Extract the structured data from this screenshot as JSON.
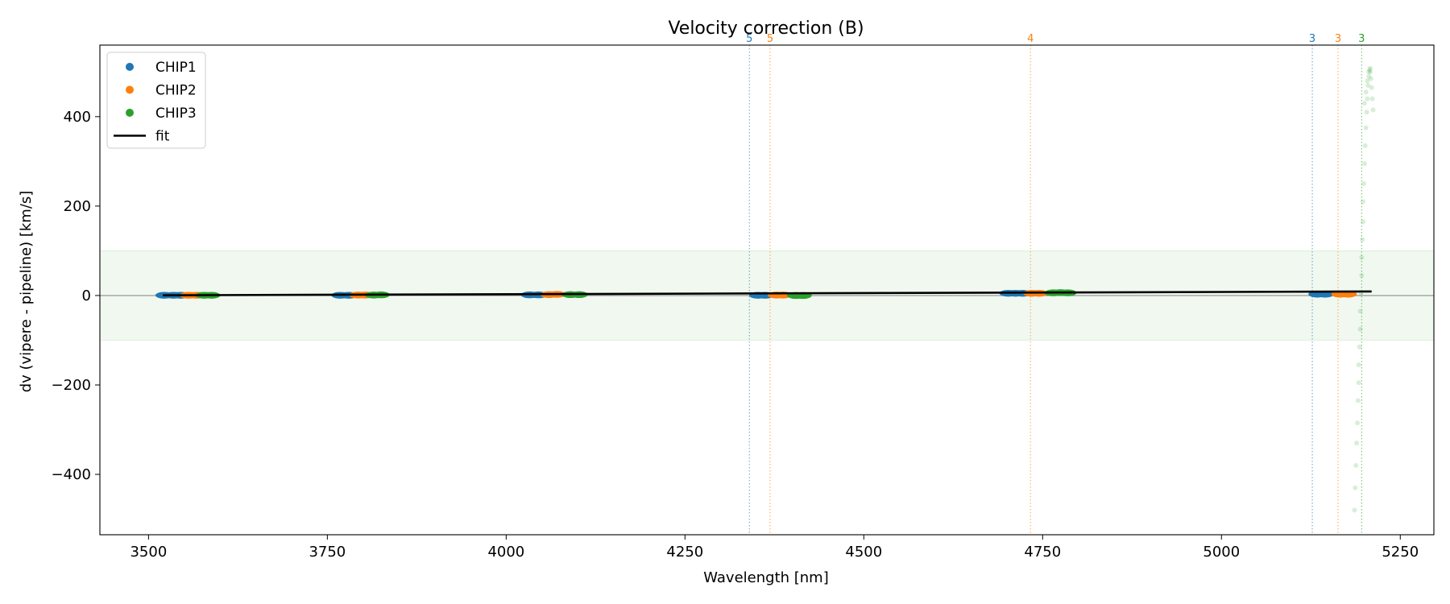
{
  "chart_data": {
    "type": "scatter",
    "title": "Velocity correction (B)",
    "xlabel": "Wavelength [nm]",
    "ylabel": "dv (vipere - pipeline) [km/s]",
    "xlim": [
      3432,
      5297
    ],
    "ylim": [
      -535,
      560
    ],
    "xticks": [
      3500,
      3750,
      4000,
      4250,
      4500,
      4750,
      5000,
      5250
    ],
    "yticks": [
      -400,
      -200,
      0,
      200,
      400
    ],
    "xtick_labels": [
      "3500",
      "3750",
      "4000",
      "4250",
      "4500",
      "4750",
      "5000",
      "5250"
    ],
    "ytick_labels": [
      "−400",
      "−200",
      "0",
      "200",
      "400"
    ],
    "grid": false,
    "legend_position": "top-left",
    "band": {
      "y_low": -100,
      "y_high": 100,
      "color": "#2ca02c"
    },
    "zero_line": true,
    "series": [
      {
        "name": "CHIP1",
        "color": "#1f77b4",
        "points": [
          {
            "x": 3522,
            "y": 0.5
          },
          {
            "x": 3535,
            "y": 0.5
          },
          {
            "x": 3545,
            "y": 0.5
          },
          {
            "x": 3768,
            "y": 0.5
          },
          {
            "x": 3780,
            "y": 0.5
          },
          {
            "x": 4033,
            "y": 1.5
          },
          {
            "x": 4045,
            "y": 1.5
          },
          {
            "x": 4352,
            "y": 0.5
          },
          {
            "x": 4362,
            "y": 0.5
          },
          {
            "x": 4702,
            "y": 5
          },
          {
            "x": 4712,
            "y": 5
          },
          {
            "x": 4722,
            "y": 5
          },
          {
            "x": 5134,
            "y": 3
          },
          {
            "x": 5145,
            "y": 3
          }
        ]
      },
      {
        "name": "CHIP2",
        "color": "#ff7f0e",
        "points": [
          {
            "x": 3556,
            "y": 0.5
          },
          {
            "x": 3567,
            "y": 0.5
          },
          {
            "x": 3793,
            "y": 1
          },
          {
            "x": 3803,
            "y": 1
          },
          {
            "x": 4060,
            "y": 2
          },
          {
            "x": 4071,
            "y": 2.5
          },
          {
            "x": 4378,
            "y": 1
          },
          {
            "x": 4387,
            "y": 1
          },
          {
            "x": 4735,
            "y": 5
          },
          {
            "x": 4745,
            "y": 5
          },
          {
            "x": 5166,
            "y": 3
          },
          {
            "x": 5177,
            "y": 3
          }
        ]
      },
      {
        "name": "CHIP3",
        "color": "#2ca02c",
        "points": [
          {
            "x": 3578,
            "y": 0.5
          },
          {
            "x": 3588,
            "y": 0.5
          },
          {
            "x": 3815,
            "y": 1
          },
          {
            "x": 3825,
            "y": 1.5
          },
          {
            "x": 4090,
            "y": 2
          },
          {
            "x": 4102,
            "y": 2
          },
          {
            "x": 4405,
            "y": 0
          },
          {
            "x": 4415,
            "y": 0
          },
          {
            "x": 4765,
            "y": 6
          },
          {
            "x": 4775,
            "y": 6.5
          },
          {
            "x": 4785,
            "y": 6
          }
        ],
        "rejected": [
          {
            "x": 5186,
            "y": -480
          },
          {
            "x": 5187,
            "y": -430
          },
          {
            "x": 5188,
            "y": -380
          },
          {
            "x": 5189,
            "y": -330
          },
          {
            "x": 5190,
            "y": -285
          },
          {
            "x": 5191,
            "y": -235
          },
          {
            "x": 5192,
            "y": -195
          },
          {
            "x": 5192,
            "y": -155
          },
          {
            "x": 5193,
            "y": -115
          },
          {
            "x": 5194,
            "y": -75
          },
          {
            "x": 5194,
            "y": -35
          },
          {
            "x": 5195,
            "y": 5
          },
          {
            "x": 5196,
            "y": 45
          },
          {
            "x": 5196,
            "y": 85
          },
          {
            "x": 5197,
            "y": 125
          },
          {
            "x": 5198,
            "y": 165
          },
          {
            "x": 5198,
            "y": 210
          },
          {
            "x": 5199,
            "y": 250
          },
          {
            "x": 5200,
            "y": 295
          },
          {
            "x": 5201,
            "y": 335
          },
          {
            "x": 5202,
            "y": 375
          },
          {
            "x": 5203,
            "y": 410
          },
          {
            "x": 5204,
            "y": 440
          },
          {
            "x": 5205,
            "y": 470
          },
          {
            "x": 5206,
            "y": 490
          },
          {
            "x": 5207,
            "y": 505
          },
          {
            "x": 5208,
            "y": 500
          },
          {
            "x": 5209,
            "y": 485
          },
          {
            "x": 5210,
            "y": 465
          },
          {
            "x": 5211,
            "y": 440
          },
          {
            "x": 5212,
            "y": 415
          },
          {
            "x": 5200,
            "y": 430
          },
          {
            "x": 5202,
            "y": 455
          },
          {
            "x": 5204,
            "y": 480
          },
          {
            "x": 5206,
            "y": 500
          },
          {
            "x": 5208,
            "y": 508
          }
        ]
      },
      {
        "name": "fit",
        "color": "#000000",
        "type": "line",
        "points": [
          {
            "x": 3520,
            "y": 0.5
          },
          {
            "x": 5210,
            "y": 9
          }
        ]
      }
    ],
    "markers": [
      {
        "x": 4340,
        "label": "5",
        "color": "#1f77b4"
      },
      {
        "x": 4369,
        "label": "5",
        "color": "#ff7f0e"
      },
      {
        "x": 4733,
        "label": "4",
        "color": "#ff7f0e"
      },
      {
        "x": 5127,
        "label": "3",
        "color": "#1f77b4"
      },
      {
        "x": 5163,
        "label": "3",
        "color": "#ff7f0e"
      },
      {
        "x": 5196,
        "label": "3",
        "color": "#2ca02c"
      }
    ]
  }
}
